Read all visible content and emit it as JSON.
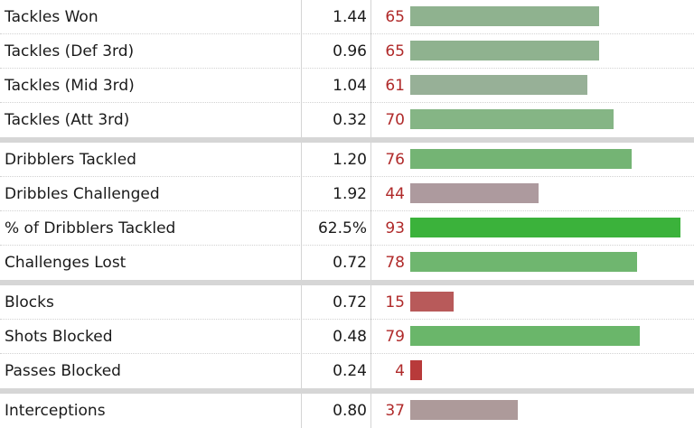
{
  "sections": [
    {
      "rows": [
        {
          "stat": "Tackles Won",
          "per90": "1.44",
          "percentile": 65,
          "bar_color": "#8fb28f"
        },
        {
          "stat": "Tackles (Def 3rd)",
          "per90": "0.96",
          "percentile": 65,
          "bar_color": "#8fb28f"
        },
        {
          "stat": "Tackles (Mid 3rd)",
          "per90": "1.04",
          "percentile": 61,
          "bar_color": "#97b097"
        },
        {
          "stat": "Tackles (Att 3rd)",
          "per90": "0.32",
          "percentile": 70,
          "bar_color": "#85b585"
        }
      ]
    },
    {
      "rows": [
        {
          "stat": "Dribblers Tackled",
          "per90": "1.20",
          "percentile": 76,
          "bar_color": "#74b474"
        },
        {
          "stat": "Dribbles Challenged",
          "per90": "1.92",
          "percentile": 44,
          "bar_color": "#ad9a9e"
        },
        {
          "stat": "% of Dribblers Tackled",
          "per90": "62.5%",
          "percentile": 93,
          "bar_color": "#3bb23b"
        },
        {
          "stat": "Challenges Lost",
          "per90": "0.72",
          "percentile": 78,
          "bar_color": "#6fb66f"
        }
      ]
    },
    {
      "rows": [
        {
          "stat": "Blocks",
          "per90": "0.72",
          "percentile": 15,
          "bar_color": "#b85a5a"
        },
        {
          "stat": "Shots Blocked",
          "per90": "0.48",
          "percentile": 79,
          "bar_color": "#6ab66a"
        },
        {
          "stat": "Passes Blocked",
          "per90": "0.24",
          "percentile": 4,
          "bar_color": "#b83a3a"
        }
      ]
    },
    {
      "rows": [
        {
          "stat": "Interceptions",
          "per90": "0.80",
          "percentile": 37,
          "bar_color": "#ad9a9a"
        }
      ]
    }
  ]
}
